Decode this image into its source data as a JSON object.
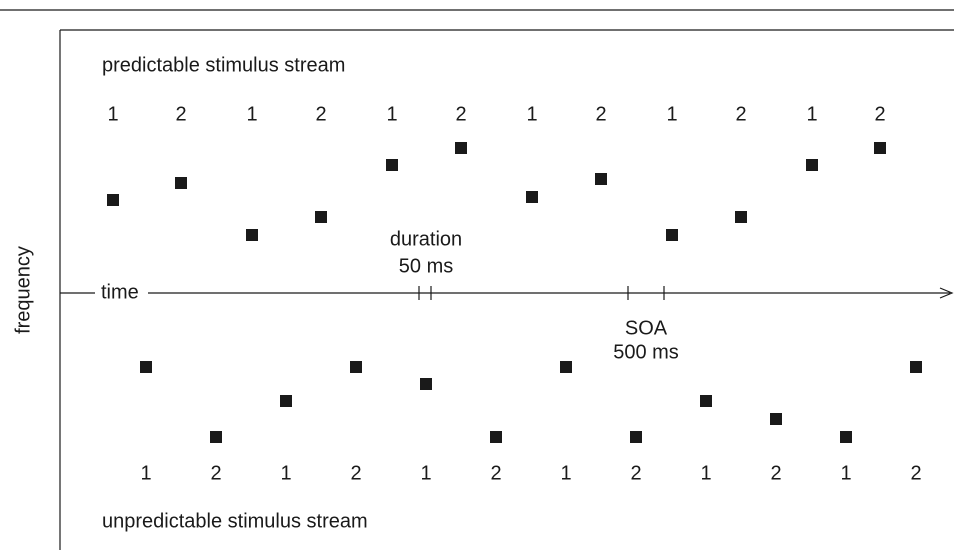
{
  "axis": {
    "y_label": "frequency",
    "x_label": "time"
  },
  "predictable_stream": {
    "title": "predictable stimulus stream",
    "labels": [
      "1",
      "2",
      "1",
      "2",
      "1",
      "2",
      "1",
      "2",
      "1",
      "2",
      "1",
      "2"
    ]
  },
  "unpredictable_stream": {
    "title": "unpredictable stimulus stream",
    "labels": [
      "1",
      "2",
      "1",
      "2",
      "1",
      "2",
      "1",
      "2",
      "1",
      "2",
      "1",
      "2"
    ]
  },
  "annotations": {
    "duration": {
      "label": "duration",
      "value": "50 ms"
    },
    "soa": {
      "label": "SOA",
      "value": "500 ms"
    }
  }
}
